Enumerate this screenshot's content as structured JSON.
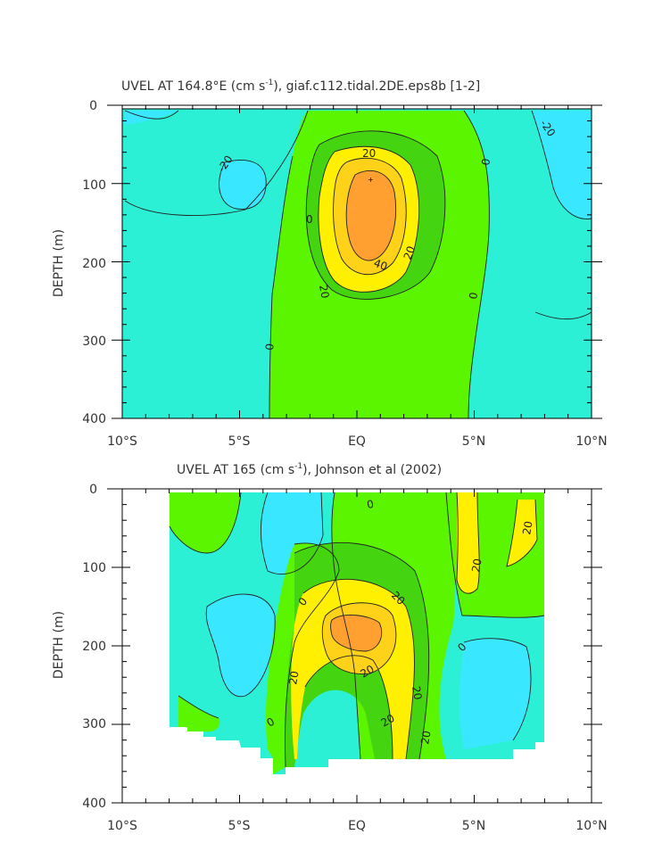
{
  "chart_data": [
    {
      "type": "contour",
      "title": "UVEL AT 164.8°E (cm s",
      "title_sup": "-1",
      "title_rest": "), giaf.c112.tidal.2DE.eps8b [1-2]",
      "ylabel": "DEPTH (m)",
      "xlim": [
        -10,
        10
      ],
      "ylim": [
        400,
        0
      ],
      "x_ticks": [
        "10°S",
        "5°S",
        "EQ",
        "5°N",
        "10°N"
      ],
      "y_ticks": [
        "0",
        "100",
        "200",
        "300",
        "400"
      ],
      "contour_labels": [
        "-20",
        "0",
        "20",
        "40",
        "20",
        "20",
        "0",
        "0",
        "0",
        "-20",
        "0"
      ],
      "colors": {
        "neg20": "#39e8ff",
        "neg0": "#2cf0d6",
        "pos0": "#5cf500",
        "pos10": "#44d410",
        "pos20": "#ffef00",
        "pos30": "#ffd21a",
        "pos40": "#ffa030"
      },
      "core_max_location": {
        "lon": 0.3,
        "depth": 125
      }
    },
    {
      "type": "contour",
      "title": "UVEL AT 165 (cm s",
      "title_sup": "-1",
      "title_rest": "), Johnson et al (2002)",
      "ylabel": "DEPTH (m)",
      "xlim": [
        -10,
        10
      ],
      "ylim": [
        400,
        0
      ],
      "x_ticks": [
        "10°S",
        "5°S",
        "EQ",
        "5°N",
        "10°N"
      ],
      "y_ticks": [
        "0",
        "100",
        "200",
        "300",
        "400"
      ],
      "contour_labels": [
        "0",
        "0",
        "20",
        "20",
        "20",
        "0",
        "20",
        "20",
        "20",
        "0",
        "20",
        "20"
      ],
      "data_extent_lon": [
        -8,
        8
      ]
    }
  ]
}
